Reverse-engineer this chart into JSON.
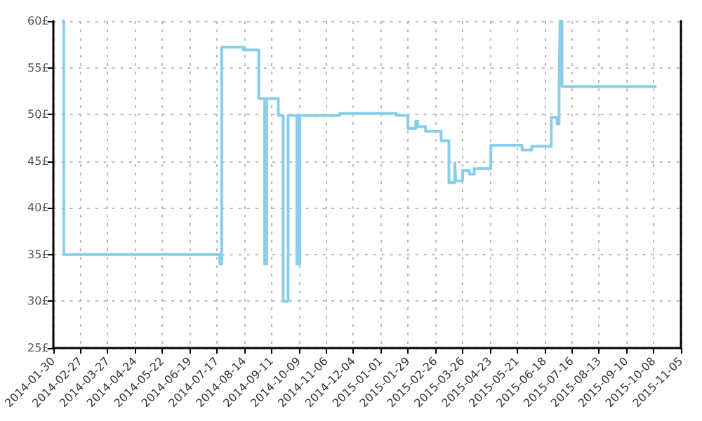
{
  "chart_data": {
    "type": "step",
    "x": [
      "2014-02-08",
      "2014-02-10",
      "2014-07-20",
      "2014-07-22",
      "2014-08-13",
      "2014-08-29",
      "2014-09-04",
      "2014-09-06",
      "2014-09-18",
      "2014-09-23",
      "2014-09-28",
      "2014-10-07",
      "2014-10-10",
      "2014-11-20",
      "2015-01-17",
      "2015-01-29",
      "2015-02-06",
      "2015-02-08",
      "2015-02-16",
      "2015-03-04",
      "2015-03-12",
      "2015-03-18",
      "2015-03-19",
      "2015-03-26",
      "2015-04-02",
      "2015-04-07",
      "2015-04-24",
      "2015-05-26",
      "2015-06-05",
      "2015-06-25",
      "2015-07-01",
      "2015-07-03",
      "2015-07-04",
      "2015-07-06",
      "2015-10-11"
    ],
    "series": [
      {
        "color": "#87ceeb",
        "values": [
          60,
          35,
          34,
          57.2,
          56.9,
          51.7,
          34,
          51.7,
          49.9,
          30,
          49.9,
          34,
          49.9,
          50.1,
          49.9,
          48.5,
          49.3,
          48.7,
          48.2,
          47.2,
          42.7,
          44.8,
          42.9,
          44.0,
          43.6,
          44.2,
          46.7,
          46.2,
          46.6,
          49.7,
          49.0,
          53,
          60,
          53,
          53
        ]
      }
    ],
    "xlim": [
      "2014-01-30",
      "2015-11-05"
    ],
    "xticks": [
      "2014-01-30",
      "2014-02-27",
      "2014-03-27",
      "2014-04-24",
      "2014-05-22",
      "2014-06-19",
      "2014-07-17",
      "2014-08-14",
      "2014-09-11",
      "2014-10-09",
      "2014-11-06",
      "2014-12-04",
      "2015-01-01",
      "2015-01-29",
      "2015-02-26",
      "2015-03-26",
      "2015-04-23",
      "2015-05-21",
      "2015-06-18",
      "2015-07-16",
      "2015-08-13",
      "2015-09-10",
      "2015-10-08",
      "2015-11-05"
    ],
    "ylim": [
      25,
      60
    ],
    "yticks": [
      {
        "value": 25,
        "label": "25£"
      },
      {
        "value": 30,
        "label": "30£"
      },
      {
        "value": 35,
        "label": "35£"
      },
      {
        "value": 40,
        "label": "40£"
      },
      {
        "value": 45,
        "label": "45£"
      },
      {
        "value": 50,
        "label": "50£"
      },
      {
        "value": 55,
        "label": "55£"
      },
      {
        "value": 60,
        "label": "60£"
      }
    ],
    "grid": true,
    "marker": "none"
  }
}
